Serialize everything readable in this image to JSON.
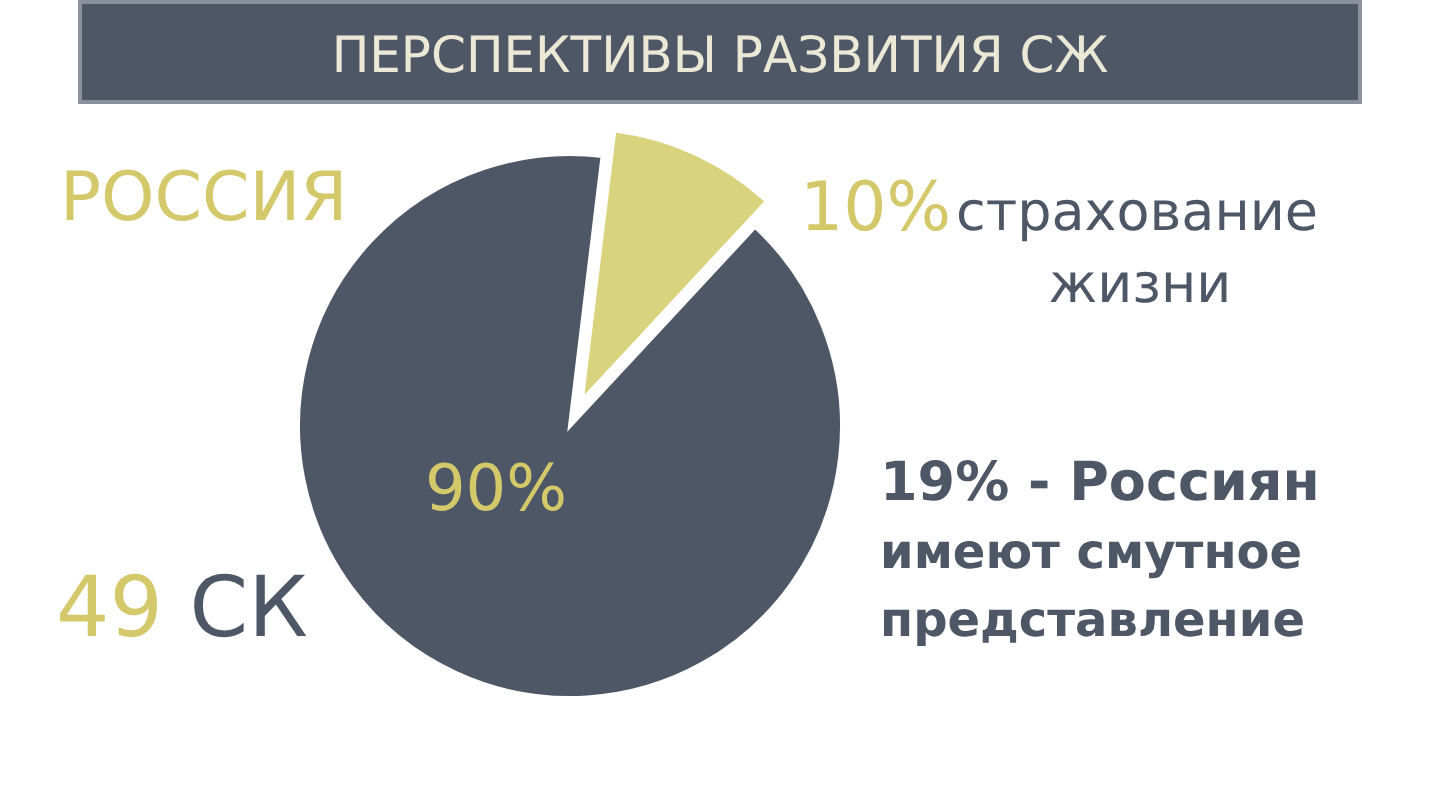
{
  "chart_data": {
    "type": "pie",
    "title": "ПЕРСПЕКТИВЫ  РАЗВИТИЯ СЖ",
    "categories": [
      "страхование жизни",
      null
    ],
    "values": [
      10,
      90
    ],
    "colors": [
      "#d8d37c",
      "#4e5766"
    ],
    "value_labels": [
      "10%",
      "90%"
    ],
    "annotations": [
      "РОССИЯ",
      "49 СК",
      "19% - Россиян имеют смутное представление"
    ]
  }
}
